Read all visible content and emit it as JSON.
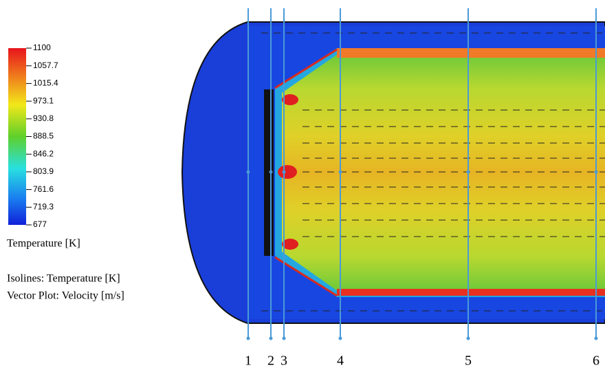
{
  "colorbar": {
    "ticks": [
      1100,
      1057.7,
      1015.4,
      973.1,
      930.8,
      888.5,
      846.2,
      803.9,
      761.6,
      719.3,
      677
    ],
    "title": "Temperature [K]"
  },
  "annotations": [
    "Isolines: Temperature [K]",
    "Vector Plot: Velocity [m/s]"
  ],
  "probe_lines": [
    "1",
    "2",
    "3",
    "4",
    "5",
    "6"
  ]
}
